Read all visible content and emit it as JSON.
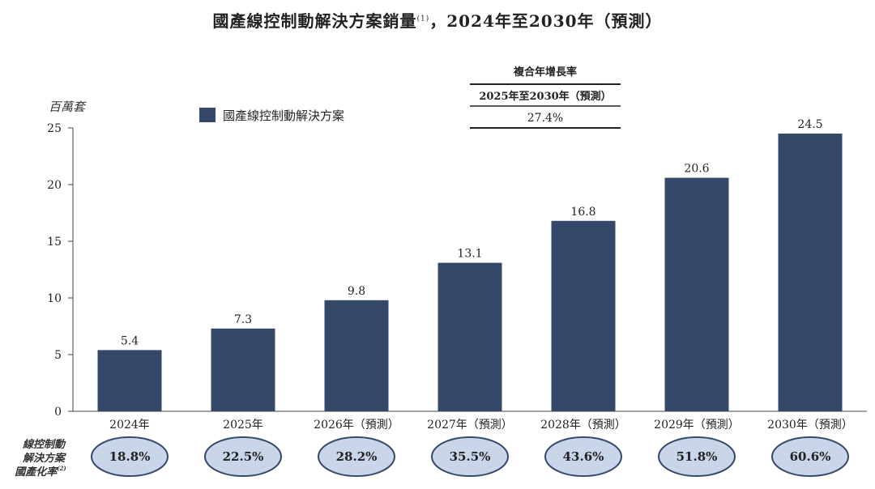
{
  "title": {
    "main": "國產線控制動解決方案銷量",
    "note": "(1)",
    "tail": "，2024年至2030年（預測）"
  },
  "cagr": {
    "heading": "複合年增長率",
    "period": "2025年至2030年（預測）",
    "value": "27.4%"
  },
  "localization": {
    "label_lines": [
      "線控制動",
      "解決方案",
      "國產化率"
    ],
    "label_note": "(2)",
    "values": [
      "18.8%",
      "22.5%",
      "28.2%",
      "35.5%",
      "43.6%",
      "51.8%",
      "60.6%"
    ]
  },
  "colors": {
    "bar": "#34486a",
    "ellipse_fill": "#c9d6ea",
    "ellipse_stroke": "#34486a"
  },
  "chart_data": {
    "type": "bar",
    "title": "國產線控制動解決方案銷量，2024年至2030年（預測）",
    "ylabel": "百萬套",
    "xlabel": "",
    "ylim": [
      0,
      25
    ],
    "yticks": [
      0,
      5,
      10,
      15,
      20,
      25
    ],
    "categories": [
      "2024年",
      "2025年",
      "2026年（預測）",
      "2027年（預測）",
      "2028年（預測）",
      "2029年（預測）",
      "2030年（預測）"
    ],
    "series": [
      {
        "name": "國產線控制動解決方案",
        "values": [
          5.4,
          7.3,
          9.8,
          13.1,
          16.8,
          20.6,
          24.5
        ]
      }
    ],
    "data_labels": [
      "5.4",
      "7.3",
      "9.8",
      "13.1",
      "16.8",
      "20.6",
      "24.5"
    ],
    "legend_position": "top-left",
    "grid": false
  }
}
